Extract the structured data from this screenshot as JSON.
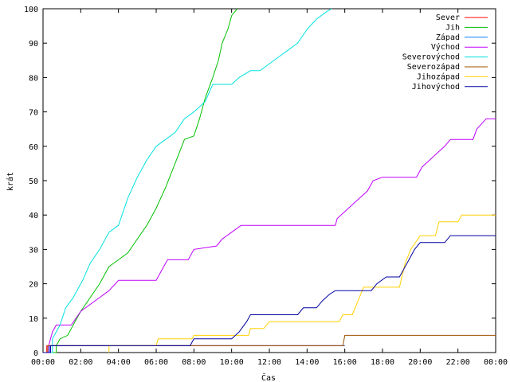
{
  "chart_data": {
    "type": "line",
    "title": "",
    "xlabel": "Čas",
    "ylabel": "krát",
    "xlim": [
      0,
      24
    ],
    "ylim": [
      0,
      100
    ],
    "x_ticks": [
      "00:00",
      "02:00",
      "04:00",
      "06:00",
      "08:00",
      "10:00",
      "12:00",
      "14:00",
      "16:00",
      "18:00",
      "20:00",
      "22:00",
      "00:00"
    ],
    "y_ticks": [
      "0",
      "10",
      "20",
      "30",
      "40",
      "50",
      "60",
      "70",
      "80",
      "90",
      "100"
    ],
    "legend_position": "top-right",
    "grid": false,
    "series": [
      {
        "name": "Sever",
        "color": "#ff0000",
        "points": [
          [
            0,
            0
          ],
          [
            0.2,
            0
          ],
          [
            0.2,
            2
          ],
          [
            16,
            2
          ],
          [
            16,
            2
          ]
        ]
      },
      {
        "name": "Jih",
        "color": "#00c000",
        "points": [
          [
            0,
            0
          ],
          [
            0.7,
            0
          ],
          [
            0.7,
            2
          ],
          [
            0.9,
            4
          ],
          [
            1.3,
            5
          ],
          [
            1.6,
            8
          ],
          [
            2,
            12
          ],
          [
            2.5,
            16
          ],
          [
            3,
            20
          ],
          [
            3.5,
            25
          ],
          [
            4,
            27
          ],
          [
            4.5,
            29
          ],
          [
            5,
            33
          ],
          [
            5.5,
            37
          ],
          [
            6,
            42
          ],
          [
            6.5,
            48
          ],
          [
            7,
            55
          ],
          [
            7.5,
            62
          ],
          [
            8,
            63
          ],
          [
            8.3,
            68
          ],
          [
            8.6,
            74
          ],
          [
            9,
            80
          ],
          [
            9.3,
            85
          ],
          [
            9.5,
            90
          ],
          [
            9.8,
            94
          ],
          [
            10,
            98
          ],
          [
            10.3,
            100
          ]
        ]
      },
      {
        "name": "Západ",
        "color": "#0080ff",
        "points": [
          [
            0,
            0
          ],
          [
            0.35,
            0
          ],
          [
            0.35,
            2
          ],
          [
            16,
            2
          ]
        ]
      },
      {
        "name": "Východ",
        "color": "#c000ff",
        "points": [
          [
            0,
            0
          ],
          [
            0.3,
            0
          ],
          [
            0.3,
            2
          ],
          [
            0.5,
            6
          ],
          [
            0.7,
            8
          ],
          [
            1.5,
            8
          ],
          [
            2,
            12
          ],
          [
            2.5,
            14
          ],
          [
            3,
            16
          ],
          [
            3.5,
            18
          ],
          [
            4,
            21
          ],
          [
            6,
            21
          ],
          [
            6.3,
            24
          ],
          [
            6.6,
            27
          ],
          [
            7.7,
            27
          ],
          [
            8,
            30
          ],
          [
            9.2,
            31
          ],
          [
            9.5,
            33
          ],
          [
            10,
            35
          ],
          [
            10.5,
            37
          ],
          [
            15.5,
            37
          ],
          [
            15.6,
            39
          ],
          [
            16,
            41
          ],
          [
            16.4,
            43
          ],
          [
            16.8,
            45
          ],
          [
            17.2,
            47
          ],
          [
            17.5,
            50
          ],
          [
            18,
            51
          ],
          [
            19.8,
            51
          ],
          [
            20.1,
            54
          ],
          [
            20.5,
            56
          ],
          [
            20.9,
            58
          ],
          [
            21.3,
            60
          ],
          [
            21.6,
            62
          ],
          [
            22.8,
            62
          ],
          [
            23,
            65
          ],
          [
            23.5,
            68
          ],
          [
            24,
            68
          ]
        ]
      },
      {
        "name": "Severovýchod",
        "color": "#00e0e0",
        "points": [
          [
            0,
            0
          ],
          [
            0.5,
            0
          ],
          [
            0.5,
            4
          ],
          [
            0.9,
            8
          ],
          [
            1.2,
            13
          ],
          [
            1.6,
            16
          ],
          [
            2.1,
            21
          ],
          [
            2.5,
            26
          ],
          [
            3,
            30
          ],
          [
            3.5,
            35
          ],
          [
            4,
            37
          ],
          [
            4.5,
            45
          ],
          [
            5,
            51
          ],
          [
            5.5,
            56
          ],
          [
            6,
            60
          ],
          [
            6.5,
            62
          ],
          [
            7,
            64
          ],
          [
            7.5,
            68
          ],
          [
            8,
            70
          ],
          [
            8.6,
            73
          ],
          [
            9,
            78
          ],
          [
            10,
            78
          ],
          [
            10.4,
            80
          ],
          [
            11,
            82
          ],
          [
            11.5,
            82
          ],
          [
            12,
            84
          ],
          [
            12.5,
            86
          ],
          [
            13,
            88
          ],
          [
            13.5,
            90
          ],
          [
            14,
            94
          ],
          [
            14.5,
            97
          ],
          [
            15,
            99
          ],
          [
            15.3,
            100
          ]
        ]
      },
      {
        "name": "Severozápad",
        "color": "#a05000",
        "points": [
          [
            0,
            0
          ],
          [
            0.25,
            0
          ],
          [
            0.25,
            2
          ],
          [
            15.9,
            2
          ],
          [
            16,
            5
          ],
          [
            24,
            5
          ]
        ]
      },
      {
        "name": "Jihozápad",
        "color": "#ffd000",
        "points": [
          [
            3.5,
            0
          ],
          [
            3.5,
            2
          ],
          [
            6,
            2
          ],
          [
            6.1,
            4
          ],
          [
            7.9,
            4
          ],
          [
            8,
            5
          ],
          [
            10.9,
            5
          ],
          [
            11,
            7
          ],
          [
            11.7,
            7
          ],
          [
            12,
            9
          ],
          [
            15.7,
            9
          ],
          [
            15.9,
            11
          ],
          [
            16.4,
            11
          ],
          [
            16.7,
            15
          ],
          [
            17,
            19
          ],
          [
            18.9,
            19
          ],
          [
            19.2,
            26
          ],
          [
            19.5,
            30
          ],
          [
            20,
            34
          ],
          [
            20.8,
            34
          ],
          [
            21,
            38
          ],
          [
            22,
            38
          ],
          [
            22.2,
            40
          ],
          [
            24,
            40
          ]
        ]
      },
      {
        "name": "Jihovýchod",
        "color": "#0000a0",
        "points": [
          [
            0,
            0
          ],
          [
            0.4,
            0
          ],
          [
            0.4,
            2
          ],
          [
            7.8,
            2
          ],
          [
            8,
            4
          ],
          [
            10,
            4
          ],
          [
            10.4,
            6
          ],
          [
            10.8,
            9
          ],
          [
            11,
            11
          ],
          [
            13.5,
            11
          ],
          [
            13.8,
            13
          ],
          [
            14.5,
            13
          ],
          [
            14.8,
            15
          ],
          [
            15.2,
            17
          ],
          [
            15.5,
            18
          ],
          [
            17.4,
            18
          ],
          [
            17.7,
            20
          ],
          [
            18.2,
            22
          ],
          [
            18.9,
            22
          ],
          [
            19.3,
            26
          ],
          [
            19.7,
            30
          ],
          [
            20,
            32
          ],
          [
            21.3,
            32
          ],
          [
            21.6,
            34
          ],
          [
            24,
            34
          ]
        ]
      }
    ]
  }
}
